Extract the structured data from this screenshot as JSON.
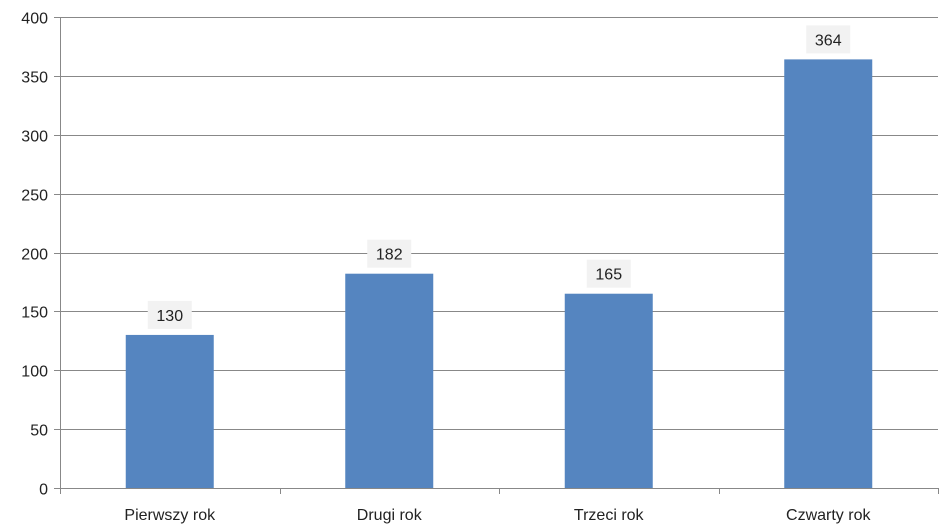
{
  "chart_data": {
    "type": "bar",
    "title": "",
    "xlabel": "",
    "ylabel": "",
    "categories": [
      "Pierwszy rok",
      "Drugi rok",
      "Trzeci rok",
      "Czwarty rok"
    ],
    "values": [
      130,
      182,
      165,
      364
    ],
    "data_labels": [
      "130",
      "182",
      "165",
      "364"
    ],
    "ylim": [
      0,
      400
    ],
    "yticks": [
      0,
      50,
      100,
      150,
      200,
      250,
      300,
      350,
      400
    ],
    "ytick_labels": [
      "0",
      "50",
      "100",
      "150",
      "200",
      "250",
      "300",
      "350",
      "400"
    ],
    "grid": true,
    "legend": "none"
  },
  "colors": {
    "bar": "#5585C0",
    "grid": "#888888",
    "axis": "#888888",
    "label_background": "#F2F2F2"
  }
}
